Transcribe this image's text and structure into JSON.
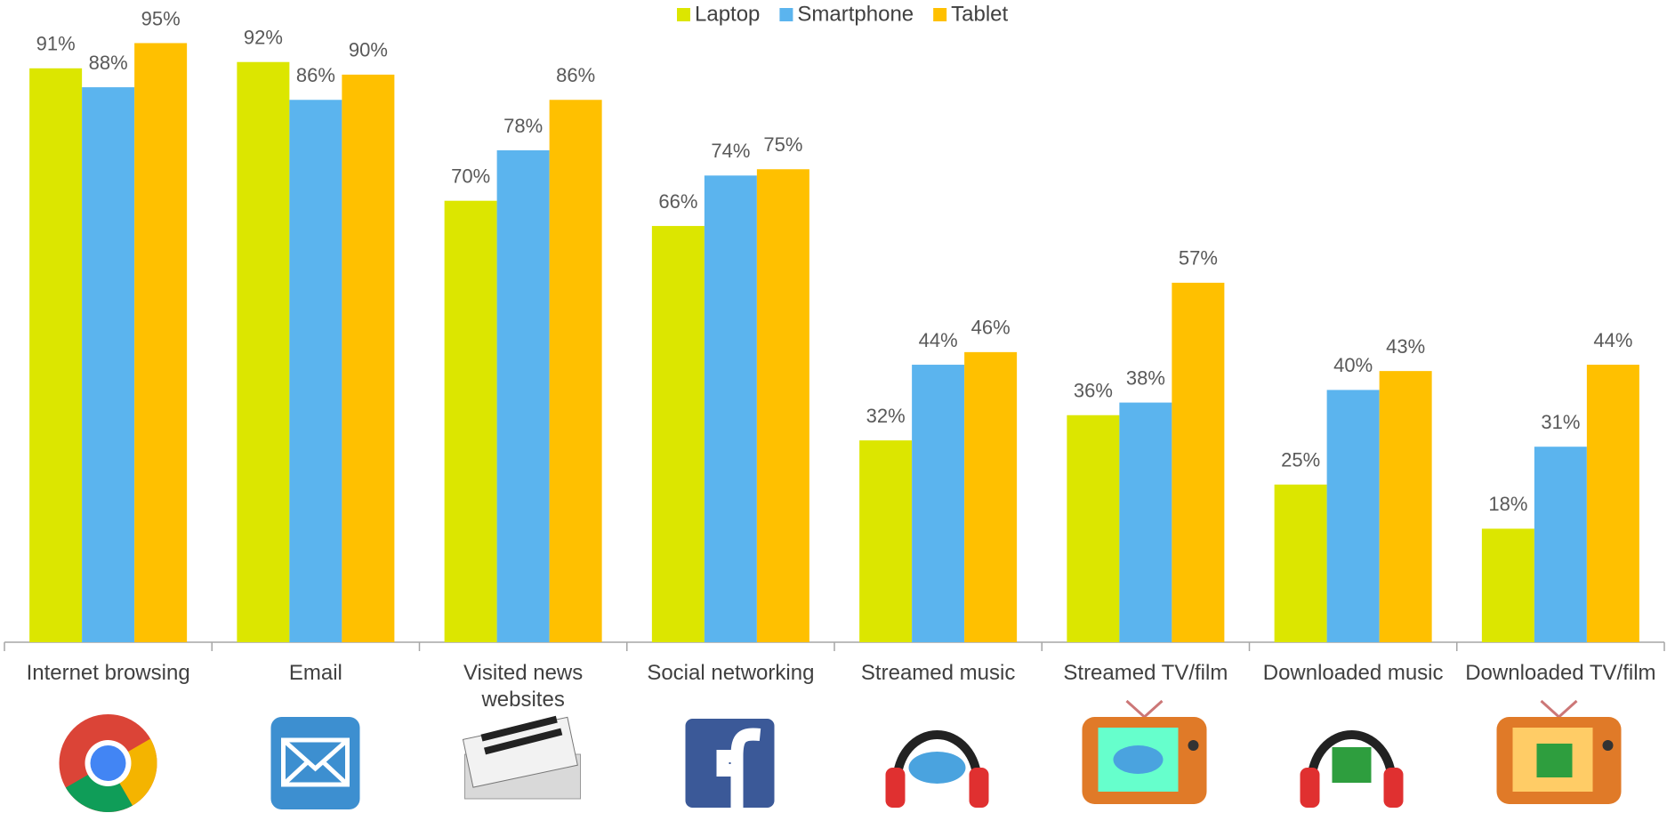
{
  "chart_data": {
    "type": "bar",
    "categories": [
      "Internet browsing",
      "Email",
      "Visited news websites",
      "Social networking",
      "Streamed music",
      "Streamed TV/film",
      "Downloaded music",
      "Downloaded TV/film"
    ],
    "series": [
      {
        "name": "Laptop",
        "color": "#dce600",
        "values": [
          91,
          92,
          70,
          66,
          32,
          36,
          25,
          18
        ],
        "value_labels": [
          "91%",
          "92%",
          "70%",
          "66%",
          "32%",
          "36%",
          "25%",
          "18%"
        ]
      },
      {
        "name": "Smartphone",
        "color": "#5bb4ee",
        "values": [
          88,
          86,
          78,
          74,
          44,
          38,
          40,
          31
        ],
        "value_labels": [
          "88%",
          "86%",
          "78%",
          "74%",
          "44%",
          "38%",
          "40%",
          "31%"
        ]
      },
      {
        "name": "Tablet",
        "color": "#ffc000",
        "values": [
          95,
          90,
          86,
          75,
          46,
          57,
          43,
          44
        ],
        "value_labels": [
          "95%",
          "90%",
          "86%",
          "75%",
          "46%",
          "57%",
          "43%",
          "44%"
        ]
      }
    ],
    "ylim": [
      0,
      100
    ],
    "legend": "top"
  }
}
